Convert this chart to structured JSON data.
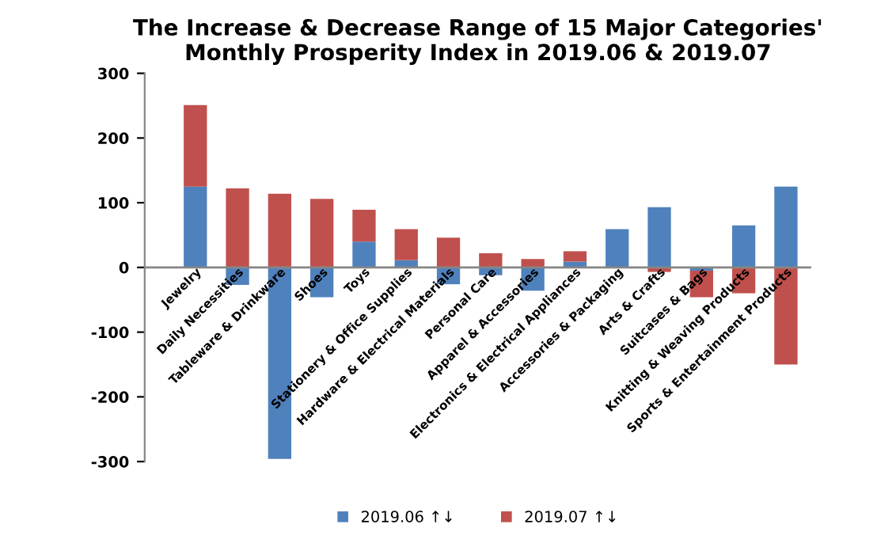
{
  "chart_data": {
    "type": "bar",
    "stacked": true,
    "title": "The Increase & Decrease Range of 15 Major Categories'\nMonthly Prosperity Index in 2019.06 & 2019.07",
    "categories": [
      "Jewelry",
      "Daily Necessities",
      "Tableware & Drinkware",
      "Shoes",
      "Toys",
      "Stationery & Office Supplies",
      "Hardware & Electrical Materials",
      "Personal Care",
      "Apparel & Accessories",
      "Electronics & Electrical Appliances",
      "Accessories & Packaging",
      "Arts & Crafts",
      "Suitcases & Bags",
      "Knitting & Weaving Products",
      "Sports & Entertainment Products"
    ],
    "series": [
      {
        "name": "2019.06 ↑↓",
        "color": "#4f81bd",
        "values": [
          125,
          -27,
          -296,
          -46,
          40,
          11,
          -26,
          -12,
          -36,
          9,
          59,
          93,
          -5,
          65,
          125
        ]
      },
      {
        "name": "2019.07 ↑↓",
        "color": "#c0504d",
        "values": [
          126,
          122,
          114,
          106,
          49,
          48,
          46,
          22,
          13,
          16,
          0,
          -7,
          -41,
          -40,
          -150
        ]
      }
    ],
    "ylim": [
      -300,
      300
    ],
    "yticks": [
      -300,
      -200,
      -100,
      0,
      100,
      200,
      300
    ],
    "grid": false,
    "legend": "bottom"
  }
}
